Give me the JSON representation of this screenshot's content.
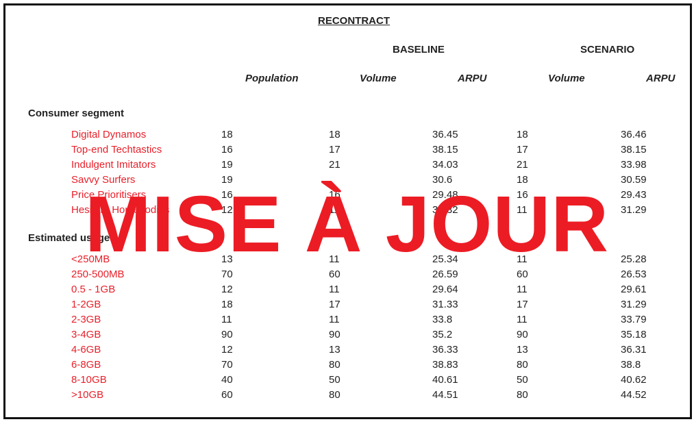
{
  "title": "RECONTRACT",
  "groups": {
    "baseline": "BASELINE",
    "scenario": "SCENARIO"
  },
  "columns": {
    "population": "Population",
    "b_volume": "Volume",
    "b_arpu": "ARPU",
    "s_volume": "Volume",
    "s_arpu": "ARPU"
  },
  "sections": {
    "consumer": {
      "header": "Consumer segment",
      "rows": [
        {
          "label": "Digital Dynamos",
          "population": "18",
          "b_volume": "18",
          "b_arpu": "36.45",
          "s_volume": "18",
          "s_arpu": "36.46"
        },
        {
          "label": "Top-end Techtastics",
          "population": "16",
          "b_volume": "17",
          "b_arpu": "38.15",
          "s_volume": "17",
          "s_arpu": "38.15"
        },
        {
          "label": "Indulgent Imitators",
          "population": "19",
          "b_volume": "21",
          "b_arpu": "34.03",
          "s_volume": "21",
          "s_arpu": "33.98"
        },
        {
          "label": "Savvy Surfers",
          "population": "19",
          "b_volume": "",
          "b_arpu": "30.6",
          "s_volume": "18",
          "s_arpu": "30.59"
        },
        {
          "label": "Price Prioritisers",
          "population": "16",
          "b_volume": "16",
          "b_arpu": "29.48",
          "s_volume": "16",
          "s_arpu": "29.43"
        },
        {
          "label": "Hesitant Homebodies",
          "population": "12",
          "b_volume": "11",
          "b_arpu": "31.32",
          "s_volume": "11",
          "s_arpu": "31.29"
        }
      ]
    },
    "usage": {
      "header": "Estimated usage",
      "rows": [
        {
          "label": "<250MB",
          "population": "13",
          "b_volume": "11",
          "b_arpu": "25.34",
          "s_volume": "11",
          "s_arpu": "25.28"
        },
        {
          "label": "250-500MB",
          "population": "70",
          "b_volume": "60",
          "b_arpu": "26.59",
          "s_volume": "60",
          "s_arpu": "26.53"
        },
        {
          "label": "0.5 - 1GB",
          "population": "12",
          "b_volume": "11",
          "b_arpu": "29.64",
          "s_volume": "11",
          "s_arpu": "29.61"
        },
        {
          "label": "1-2GB",
          "population": "18",
          "b_volume": "17",
          "b_arpu": "31.33",
          "s_volume": "17",
          "s_arpu": "31.29"
        },
        {
          "label": "2-3GB",
          "population": "11",
          "b_volume": "11",
          "b_arpu": "33.8",
          "s_volume": "11",
          "s_arpu": "33.79"
        },
        {
          "label": "3-4GB",
          "population": "90",
          "b_volume": "90",
          "b_arpu": "35.2",
          "s_volume": "90",
          "s_arpu": "35.18"
        },
        {
          "label": "4-6GB",
          "population": "12",
          "b_volume": "13",
          "b_arpu": "36.33",
          "s_volume": "13",
          "s_arpu": "36.31"
        },
        {
          "label": "6-8GB",
          "population": "70",
          "b_volume": "80",
          "b_arpu": "38.83",
          "s_volume": "80",
          "s_arpu": "38.8"
        },
        {
          "label": "8-10GB",
          "population": "40",
          "b_volume": "50",
          "b_arpu": "40.61",
          "s_volume": "50",
          "s_arpu": "40.62"
        },
        {
          "label": ">10GB",
          "population": "60",
          "b_volume": "80",
          "b_arpu": "44.51",
          "s_volume": "80",
          "s_arpu": "44.52"
        }
      ]
    }
  },
  "stamp": "MISE À JOUR",
  "colors": {
    "label": "#e8202a",
    "stamp": "#ec1c24",
    "border": "#111111"
  }
}
